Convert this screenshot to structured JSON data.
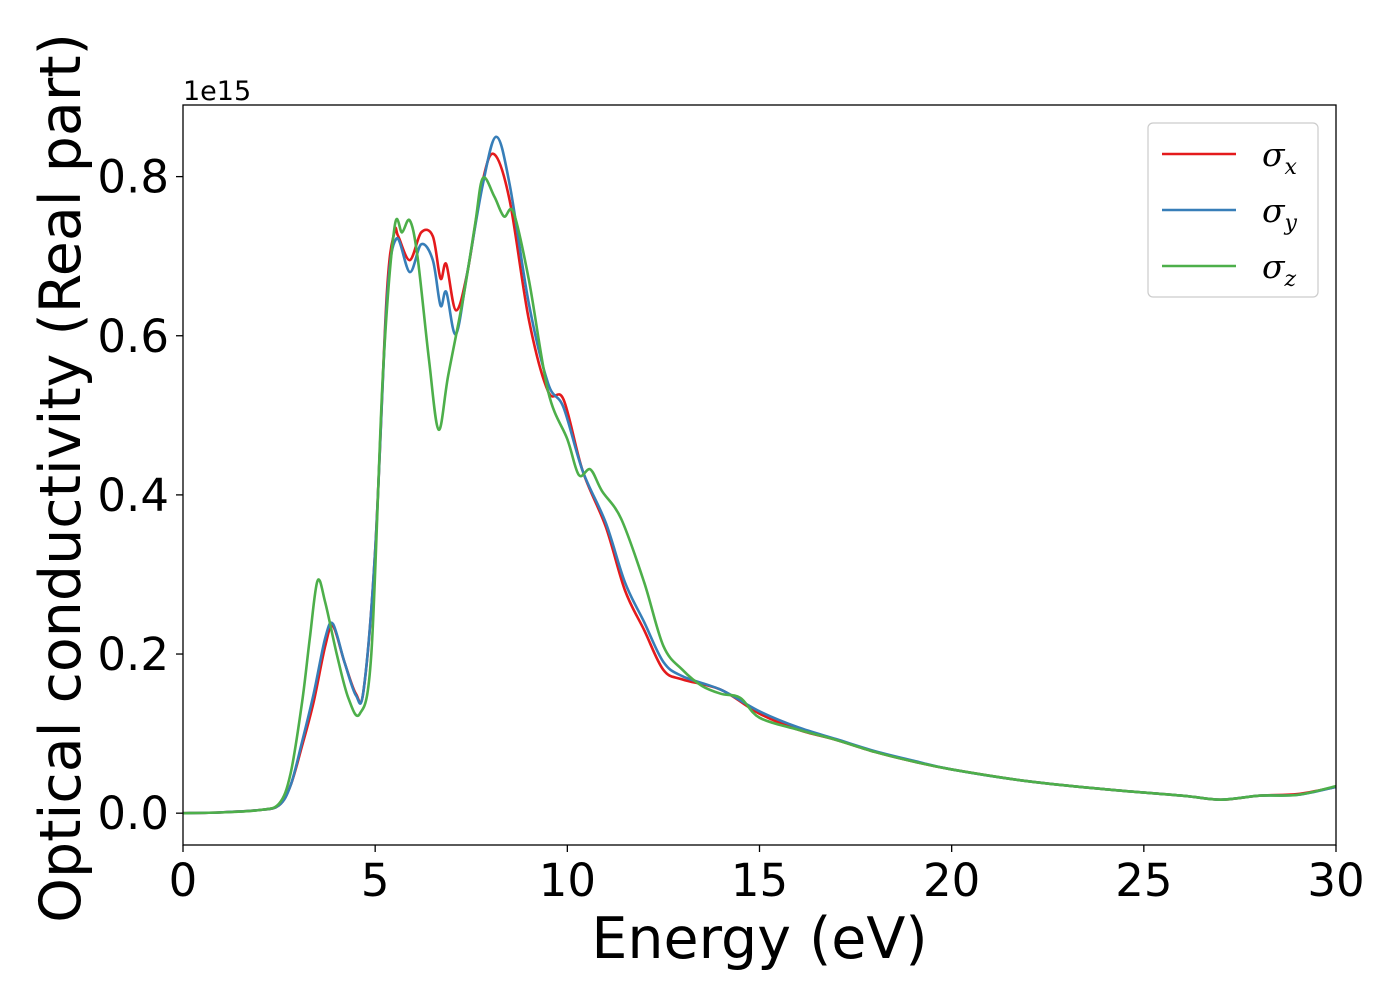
{
  "chart_data": {
    "type": "line",
    "xlabel": "Energy (eV)",
    "ylabel": "Optical conductivity (Real part)",
    "y_offset_label": "1e15",
    "xlim": [
      0,
      30
    ],
    "ylim": [
      -0.04,
      0.89
    ],
    "x_ticks": [
      0,
      5,
      10,
      15,
      20,
      25,
      30
    ],
    "x_tick_labels": [
      "0",
      "5",
      "10",
      "15",
      "20",
      "25",
      "30"
    ],
    "y_ticks": [
      0.0,
      0.2,
      0.4,
      0.6,
      0.8
    ],
    "y_tick_labels": [
      "0.0",
      "0.2",
      "0.4",
      "0.6",
      "0.8"
    ],
    "grid": false,
    "legend_position": "top-right",
    "series": [
      {
        "name": "σx",
        "legend_symbol": "σ",
        "legend_subscript": "x",
        "color": "#e41a1c",
        "points": [
          [
            0,
            0
          ],
          [
            1,
            0.001
          ],
          [
            2,
            0.004
          ],
          [
            2.5,
            0.01
          ],
          [
            2.8,
            0.035
          ],
          [
            3.1,
            0.085
          ],
          [
            3.4,
            0.14
          ],
          [
            3.7,
            0.21
          ],
          [
            3.9,
            0.235
          ],
          [
            4.2,
            0.19
          ],
          [
            4.5,
            0.15
          ],
          [
            4.7,
            0.155
          ],
          [
            5,
            0.33
          ],
          [
            5.3,
            0.65
          ],
          [
            5.5,
            0.73
          ],
          [
            5.6,
            0.725
          ],
          [
            5.9,
            0.695
          ],
          [
            6.2,
            0.73
          ],
          [
            6.5,
            0.725
          ],
          [
            6.7,
            0.672
          ],
          [
            6.85,
            0.69
          ],
          [
            7.1,
            0.632
          ],
          [
            7.4,
            0.68
          ],
          [
            7.8,
            0.795
          ],
          [
            8.1,
            0.828
          ],
          [
            8.5,
            0.77
          ],
          [
            9,
            0.62
          ],
          [
            9.5,
            0.53
          ],
          [
            9.9,
            0.52
          ],
          [
            10.4,
            0.43
          ],
          [
            11,
            0.36
          ],
          [
            11.5,
            0.28
          ],
          [
            12,
            0.23
          ],
          [
            12.5,
            0.18
          ],
          [
            13,
            0.168
          ],
          [
            14,
            0.155
          ],
          [
            15,
            0.125
          ],
          [
            16,
            0.105
          ],
          [
            17,
            0.092
          ],
          [
            18,
            0.077
          ],
          [
            19,
            0.065
          ],
          [
            20,
            0.055
          ],
          [
            22,
            0.04
          ],
          [
            24,
            0.03
          ],
          [
            26,
            0.022
          ],
          [
            27,
            0.017
          ],
          [
            28,
            0.022
          ],
          [
            29,
            0.024
          ],
          [
            30,
            0.033
          ]
        ]
      },
      {
        "name": "σy",
        "legend_symbol": "σ",
        "legend_subscript": "y",
        "color": "#377eb8",
        "points": [
          [
            0,
            0
          ],
          [
            1,
            0.001
          ],
          [
            2,
            0.004
          ],
          [
            2.5,
            0.01
          ],
          [
            2.8,
            0.035
          ],
          [
            3.1,
            0.09
          ],
          [
            3.4,
            0.15
          ],
          [
            3.7,
            0.22
          ],
          [
            3.9,
            0.238
          ],
          [
            4.2,
            0.19
          ],
          [
            4.5,
            0.148
          ],
          [
            4.7,
            0.155
          ],
          [
            5,
            0.33
          ],
          [
            5.3,
            0.64
          ],
          [
            5.55,
            0.722
          ],
          [
            5.9,
            0.68
          ],
          [
            6.2,
            0.715
          ],
          [
            6.5,
            0.695
          ],
          [
            6.7,
            0.638
          ],
          [
            6.85,
            0.655
          ],
          [
            7.1,
            0.602
          ],
          [
            7.4,
            0.68
          ],
          [
            7.8,
            0.79
          ],
          [
            8.15,
            0.85
          ],
          [
            8.5,
            0.79
          ],
          [
            9,
            0.64
          ],
          [
            9.5,
            0.54
          ],
          [
            9.9,
            0.51
          ],
          [
            10.4,
            0.43
          ],
          [
            11,
            0.365
          ],
          [
            11.5,
            0.29
          ],
          [
            12,
            0.24
          ],
          [
            12.5,
            0.19
          ],
          [
            13,
            0.172
          ],
          [
            14,
            0.155
          ],
          [
            15,
            0.128
          ],
          [
            16,
            0.108
          ],
          [
            17,
            0.093
          ],
          [
            18,
            0.078
          ],
          [
            19,
            0.066
          ],
          [
            20,
            0.055
          ],
          [
            22,
            0.04
          ],
          [
            24,
            0.03
          ],
          [
            26,
            0.022
          ],
          [
            27,
            0.017
          ],
          [
            28,
            0.022
          ],
          [
            29,
            0.023
          ],
          [
            30,
            0.033
          ]
        ]
      },
      {
        "name": "σz",
        "legend_symbol": "σ",
        "legend_subscript": "z",
        "color": "#4daf4a",
        "points": [
          [
            0,
            0
          ],
          [
            1,
            0.001
          ],
          [
            2,
            0.004
          ],
          [
            2.5,
            0.012
          ],
          [
            2.8,
            0.05
          ],
          [
            3.1,
            0.14
          ],
          [
            3.3,
            0.22
          ],
          [
            3.5,
            0.292
          ],
          [
            3.7,
            0.265
          ],
          [
            4,
            0.2
          ],
          [
            4.3,
            0.145
          ],
          [
            4.6,
            0.125
          ],
          [
            4.9,
            0.2
          ],
          [
            5.2,
            0.55
          ],
          [
            5.5,
            0.735
          ],
          [
            5.7,
            0.73
          ],
          [
            5.9,
            0.745
          ],
          [
            6.1,
            0.7
          ],
          [
            6.4,
            0.57
          ],
          [
            6.65,
            0.482
          ],
          [
            6.9,
            0.55
          ],
          [
            7.3,
            0.65
          ],
          [
            7.6,
            0.74
          ],
          [
            7.8,
            0.798
          ],
          [
            8.1,
            0.775
          ],
          [
            8.35,
            0.75
          ],
          [
            8.6,
            0.755
          ],
          [
            9,
            0.67
          ],
          [
            9.5,
            0.53
          ],
          [
            10,
            0.47
          ],
          [
            10.3,
            0.425
          ],
          [
            10.6,
            0.432
          ],
          [
            10.9,
            0.405
          ],
          [
            11.4,
            0.37
          ],
          [
            12,
            0.29
          ],
          [
            12.5,
            0.21
          ],
          [
            13,
            0.18
          ],
          [
            13.5,
            0.16
          ],
          [
            14,
            0.15
          ],
          [
            14.5,
            0.145
          ],
          [
            15,
            0.12
          ],
          [
            16,
            0.105
          ],
          [
            17,
            0.092
          ],
          [
            18,
            0.077
          ],
          [
            19,
            0.065
          ],
          [
            20,
            0.055
          ],
          [
            22,
            0.04
          ],
          [
            24,
            0.03
          ],
          [
            26,
            0.022
          ],
          [
            27,
            0.017
          ],
          [
            28,
            0.022
          ],
          [
            29,
            0.023
          ],
          [
            30,
            0.034
          ]
        ]
      }
    ]
  }
}
